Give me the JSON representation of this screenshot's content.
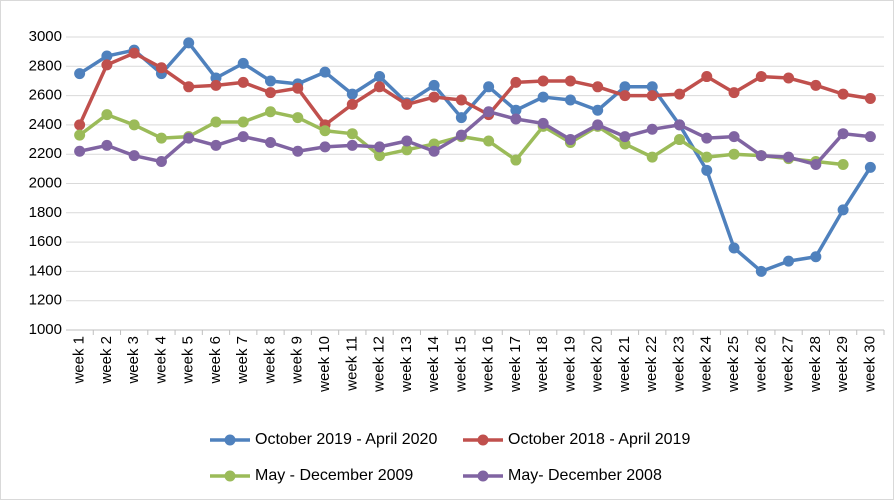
{
  "chart_data": {
    "type": "line",
    "categories": [
      "week 1",
      "week 2",
      "week 3",
      "week 4",
      "week 5",
      "week 6",
      "week 7",
      "week 8",
      "week 9",
      "week 10",
      "week 11",
      "week 12",
      "week 13",
      "week 14",
      "week 15",
      "week 16",
      "week 17",
      "week 18",
      "week 19",
      "week 20",
      "week 21",
      "week 22",
      "week 23",
      "week 24",
      "week 25",
      "week 26",
      "week 27",
      "week 28",
      "week 29",
      "week 30"
    ],
    "series": [
      {
        "name": "October 2019 - April 2020",
        "color": "#4f81bd",
        "values": [
          2750,
          2870,
          2910,
          2750,
          2960,
          2720,
          2820,
          2700,
          2680,
          2760,
          2610,
          2730,
          2550,
          2670,
          2450,
          2660,
          2500,
          2590,
          2570,
          2500,
          2660,
          2660,
          2400,
          2090,
          1560,
          1400,
          1470,
          1500,
          1820,
          2110
        ]
      },
      {
        "name": "October 2018 - April 2019",
        "color": "#c0504d",
        "values": [
          2400,
          2810,
          2890,
          2790,
          2660,
          2670,
          2690,
          2620,
          2650,
          2400,
          2540,
          2660,
          2540,
          2590,
          2570,
          2470,
          2690,
          2700,
          2700,
          2660,
          2600,
          2600,
          2610,
          2730,
          2620,
          2730,
          2720,
          2670,
          2610,
          2580
        ]
      },
      {
        "name": "May - December 2009",
        "color": "#9bbb59",
        "values": [
          2330,
          2470,
          2400,
          2310,
          2320,
          2420,
          2420,
          2490,
          2450,
          2360,
          2340,
          2190,
          2230,
          2270,
          2320,
          2290,
          2160,
          2390,
          2280,
          2390,
          2270,
          2180,
          2300,
          2180,
          2200,
          2190,
          2170,
          2150,
          2130,
          null
        ]
      },
      {
        "name": "May- December 2008",
        "color": "#8064a2",
        "values": [
          2220,
          2260,
          2190,
          2150,
          2310,
          2260,
          2320,
          2280,
          2220,
          2250,
          2260,
          2250,
          2290,
          2220,
          2330,
          2490,
          2440,
          2410,
          2300,
          2400,
          2320,
          2370,
          2400,
          2310,
          2320,
          2190,
          2180,
          2130,
          2340,
          2320
        ]
      }
    ],
    "ylim": [
      1000,
      3000
    ],
    "yticks": [
      1000,
      1200,
      1400,
      1600,
      1800,
      2000,
      2200,
      2400,
      2600,
      2800,
      3000
    ],
    "grid": true,
    "legend": "bottom"
  }
}
